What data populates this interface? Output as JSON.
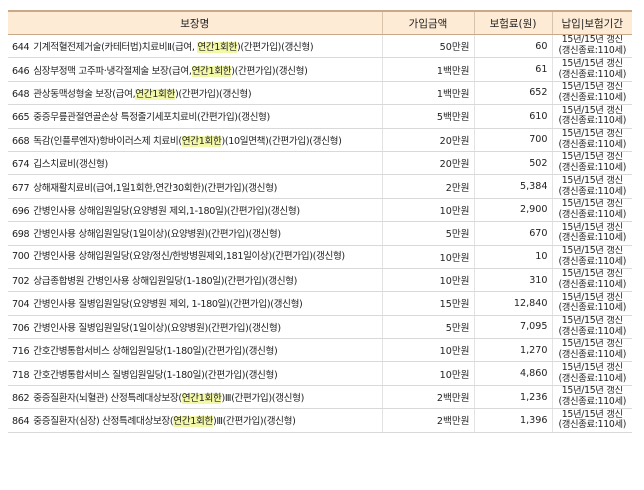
{
  "headers": {
    "name": "보장명",
    "amount": "가입금액",
    "premium": "보험료(원)",
    "period": "납입|보험기간"
  },
  "rows": [
    {
      "code": "644",
      "pre": "기계적혈전제거술(카테터법)치료비Ⅱ(급여, ",
      "hl": "연간1회한",
      "post": ")(간편가입)(갱신형)",
      "amount": "50만원",
      "premium": "60",
      "period1": "15년/15년 갱신",
      "period2": "(갱신종료:110세)"
    },
    {
      "code": "646",
      "pre": "심장부정맥 고주파·냉각절제술 보장(급여,",
      "hl": "연간1회한",
      "post": ")(간편가입)(갱신형)",
      "amount": "1백만원",
      "premium": "61",
      "period1": "15년/15년 갱신",
      "period2": "(갱신종료:110세)"
    },
    {
      "code": "648",
      "pre": "관상동맥성형술 보장(급여,",
      "hl": "연간1회한",
      "post": ")(간편가입)(갱신형)",
      "amount": "1백만원",
      "premium": "652",
      "period1": "15년/15년 갱신",
      "period2": "(갱신종료:110세)"
    },
    {
      "code": "665",
      "pre": "중증무릎관절연골손상 특정줄기세포치료비(간편가입)(갱신형)",
      "hl": "",
      "post": "",
      "amount": "5백만원",
      "premium": "610",
      "period1": "15년/15년 갱신",
      "period2": "(갱신종료:110세)"
    },
    {
      "code": "668",
      "pre": "독감(인플루엔자)항바이러스제 치료비(",
      "hl": "연간1회한",
      "post": ")(10일면책)(간편가입)(갱신형)",
      "amount": "20만원",
      "premium": "700",
      "period1": "15년/15년 갱신",
      "period2": "(갱신종료:110세)"
    },
    {
      "code": "674",
      "pre": "깁스치료비(갱신형)",
      "hl": "",
      "post": "",
      "amount": "20만원",
      "premium": "502",
      "period1": "15년/15년 갱신",
      "period2": "(갱신종료:110세)"
    },
    {
      "code": "677",
      "pre": "상해재활치료비(급여,1일1회한,연간30회한)(간편가입)(갱신형)",
      "hl": "",
      "post": "",
      "amount": "2만원",
      "premium": "5,384",
      "period1": "15년/15년 갱신",
      "period2": "(갱신종료:110세)"
    },
    {
      "code": "696",
      "pre": "간병인사용 상해입원일당(요양병원 제외,1-180일)(간편가입)(갱신형)",
      "hl": "",
      "post": "",
      "amount": "10만원",
      "premium": "2,900",
      "period1": "15년/15년 갱신",
      "period2": "(갱신종료:110세)"
    },
    {
      "code": "698",
      "pre": "간병인사용 상해입원일당(1일이상)(요양병원)(간편가입)(갱신형)",
      "hl": "",
      "post": "",
      "amount": "5만원",
      "premium": "670",
      "period1": "15년/15년 갱신",
      "period2": "(갱신종료:110세)"
    },
    {
      "code": "700",
      "pre": "간병인사용 상해입원일당(요양/정신/한방병원제외,181일이상)(간편가입)(갱신형)",
      "hl": "",
      "post": "",
      "amount": "10만원",
      "premium": "10",
      "period1": "15년/15년 갱신",
      "period2": "(갱신종료:110세)",
      "wrap": true
    },
    {
      "code": "702",
      "pre": "상급종합병원 간병인사용 상해입원일당(1-180일)(간편가입)(갱신형)",
      "hl": "",
      "post": "",
      "amount": "10만원",
      "premium": "310",
      "period1": "15년/15년 갱신",
      "period2": "(갱신종료:110세)"
    },
    {
      "code": "704",
      "pre": "간병인사용 질병입원일당(요양병원 제외, 1-180일)(간편가입)(갱신형)",
      "hl": "",
      "post": "",
      "amount": "15만원",
      "premium": "12,840",
      "period1": "15년/15년 갱신",
      "period2": "(갱신종료:110세)"
    },
    {
      "code": "706",
      "pre": "간병인사용 질병입원일당(1일이상)(요양병원)(간편가입)(갱신형)",
      "hl": "",
      "post": "",
      "amount": "5만원",
      "premium": "7,095",
      "period1": "15년/15년 갱신",
      "period2": "(갱신종료:110세)"
    },
    {
      "code": "716",
      "pre": "간호간병통합서비스 상해입원일당(1-180일)(간편가입)(갱신형)",
      "hl": "",
      "post": "",
      "amount": "10만원",
      "premium": "1,270",
      "period1": "15년/15년 갱신",
      "period2": "(갱신종료:110세)"
    },
    {
      "code": "718",
      "pre": "간호간병통합서비스 질병입원일당(1-180일)(간편가입)(갱신형)",
      "hl": "",
      "post": "",
      "amount": "10만원",
      "premium": "4,860",
      "period1": "15년/15년 갱신",
      "period2": "(갱신종료:110세)"
    },
    {
      "code": "862",
      "pre": "중증질환자(뇌혈관) 산정특례대상보장(",
      "hl": "연간1회한",
      "post": ")Ⅲ(간편가입)(갱신형)",
      "amount": "2백만원",
      "premium": "1,236",
      "period1": "15년/15년 갱신",
      "period2": "(갱신종료:110세)"
    },
    {
      "code": "864",
      "pre": "중증질환자(심장) 산정특례대상보장(",
      "hl": "연간1회한",
      "post": ")Ⅲ(간편가입)(갱신형)",
      "amount": "2백만원",
      "premium": "1,396",
      "period1": "15년/15년 갱신",
      "period2": "(갱신종료:110세)"
    }
  ],
  "colors": {
    "header_bg": "#fdebd6",
    "highlight": "#f3f8a8"
  }
}
